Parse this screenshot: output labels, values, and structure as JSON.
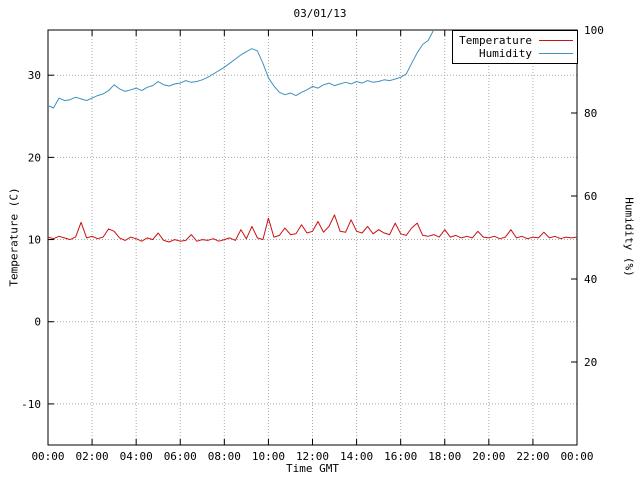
{
  "chart_data": {
    "type": "line",
    "title": "03/01/13",
    "xlabel": "Time GMT",
    "grid": true,
    "legend_position": "top-right",
    "x_range": [
      0,
      24
    ],
    "x_ticks": {
      "positions": [
        0,
        2,
        4,
        6,
        8,
        10,
        12,
        14,
        16,
        18,
        20,
        22,
        24
      ],
      "labels": [
        "00:00",
        "02:00",
        "04:00",
        "06:00",
        "08:00",
        "10:00",
        "12:00",
        "14:00",
        "16:00",
        "18:00",
        "20:00",
        "22:00",
        "00:00"
      ]
    },
    "left_axis": {
      "label": "Temperature (C)",
      "range": [
        -15,
        35.5
      ],
      "ticks": [
        -10,
        0,
        10,
        20,
        30
      ]
    },
    "right_axis": {
      "label": "Humidity (%)",
      "range": [
        0,
        100
      ],
      "ticks": [
        20,
        40,
        60,
        80,
        100
      ]
    },
    "series": [
      {
        "name": "Temperature",
        "axis": "left",
        "color": "#cc1111",
        "x_start": 0,
        "x_step": 0.25,
        "values": [
          10.3,
          10.1,
          10.4,
          10.2,
          10.0,
          10.3,
          12.1,
          10.2,
          10.4,
          10.1,
          10.3,
          11.3,
          11.0,
          10.2,
          9.9,
          10.3,
          10.1,
          9.8,
          10.2,
          10.0,
          10.8,
          9.9,
          9.7,
          10.0,
          9.8,
          9.9,
          10.6,
          9.8,
          10.0,
          9.9,
          10.1,
          9.8,
          10.0,
          10.2,
          9.9,
          11.2,
          10.1,
          11.6,
          10.2,
          10.0,
          12.6,
          10.3,
          10.5,
          11.4,
          10.6,
          10.7,
          11.8,
          10.8,
          11.0,
          12.2,
          10.9,
          11.6,
          13.0,
          11.0,
          10.9,
          12.4,
          11.0,
          10.8,
          11.6,
          10.7,
          11.2,
          10.8,
          10.6,
          12.0,
          10.7,
          10.5,
          11.4,
          12.0,
          10.5,
          10.4,
          10.6,
          10.3,
          11.2,
          10.3,
          10.5,
          10.2,
          10.4,
          10.2,
          11.0,
          10.3,
          10.2,
          10.4,
          10.1,
          10.3,
          11.2,
          10.2,
          10.4,
          10.1,
          10.3,
          10.2,
          10.9,
          10.2,
          10.4,
          10.1,
          10.3,
          10.2,
          10.3
        ]
      },
      {
        "name": "Humidity",
        "axis": "right",
        "color": "#4090c0",
        "x_start": 0,
        "x_step": 0.25,
        "values": [
          81.8,
          81.2,
          83.6,
          83.0,
          83.2,
          83.8,
          83.4,
          83.0,
          83.6,
          84.2,
          84.6,
          85.4,
          86.8,
          85.8,
          85.2,
          85.6,
          86.0,
          85.4,
          86.2,
          86.6,
          87.6,
          86.8,
          86.5,
          87.0,
          87.2,
          87.8,
          87.4,
          87.6,
          88.0,
          88.6,
          89.4,
          90.2,
          91.0,
          92.0,
          93.0,
          94.0,
          94.8,
          95.5,
          95.0,
          92.0,
          88.5,
          86.5,
          85.0,
          84.4,
          84.8,
          84.2,
          85.0,
          85.6,
          86.4,
          86.0,
          86.8,
          87.2,
          86.6,
          87.0,
          87.4,
          87.0,
          87.6,
          87.2,
          87.8,
          87.4,
          87.6,
          88.0,
          87.8,
          88.2,
          88.6,
          89.4,
          92.0,
          94.5,
          96.5,
          97.5,
          100.0
        ]
      }
    ]
  }
}
